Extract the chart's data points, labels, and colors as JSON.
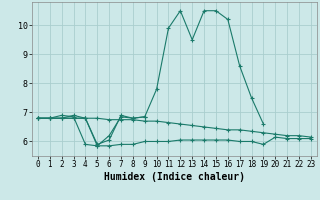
{
  "xlabel": "Humidex (Indice chaleur)",
  "x_values": [
    0,
    1,
    2,
    3,
    4,
    5,
    6,
    7,
    8,
    9,
    10,
    11,
    12,
    13,
    14,
    15,
    16,
    17,
    18,
    19,
    20,
    21,
    22,
    23
  ],
  "line1": [
    6.8,
    6.8,
    6.9,
    6.85,
    5.9,
    5.85,
    6.2,
    6.85,
    6.8,
    6.85,
    7.8,
    9.9,
    10.5,
    9.5,
    10.5,
    10.5,
    10.2,
    8.6,
    7.5,
    6.6,
    null,
    null,
    null,
    null
  ],
  "line2": [
    6.8,
    6.8,
    6.8,
    6.9,
    6.8,
    5.9,
    6.05,
    6.9,
    6.8,
    6.85,
    null,
    null,
    null,
    null,
    null,
    null,
    null,
    null,
    null,
    null,
    null,
    null,
    null,
    null
  ],
  "line3": [
    6.8,
    6.8,
    6.8,
    6.8,
    6.8,
    5.85,
    5.85,
    5.9,
    5.9,
    6.0,
    6.0,
    6.0,
    6.05,
    6.05,
    6.05,
    6.05,
    6.05,
    6.0,
    6.0,
    5.9,
    6.15,
    6.1,
    6.1,
    6.1
  ],
  "line4": [
    6.8,
    6.8,
    6.8,
    6.8,
    6.8,
    6.8,
    6.75,
    6.75,
    6.75,
    6.7,
    6.7,
    6.65,
    6.6,
    6.55,
    6.5,
    6.45,
    6.4,
    6.4,
    6.35,
    6.3,
    6.25,
    6.2,
    6.2,
    6.15
  ],
  "color": "#1a7a6a",
  "bg_color": "#cce8e8",
  "grid_color": "#aacece",
  "ylim": [
    5.5,
    10.8
  ],
  "yticks": [
    6,
    7,
    8,
    9,
    10
  ],
  "xticks": [
    0,
    1,
    2,
    3,
    4,
    5,
    6,
    7,
    8,
    9,
    10,
    11,
    12,
    13,
    14,
    15,
    16,
    17,
    18,
    19,
    20,
    21,
    22,
    23
  ]
}
